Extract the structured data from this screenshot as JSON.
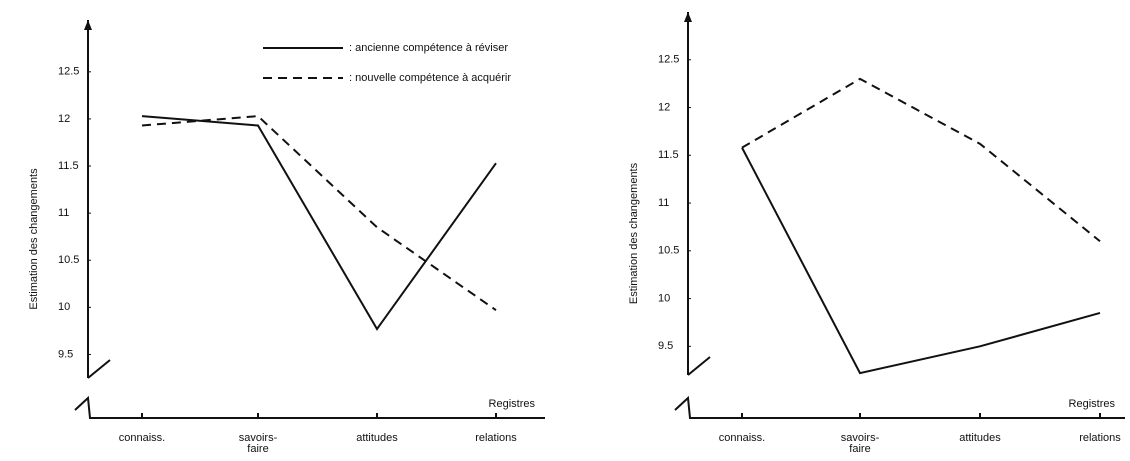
{
  "chart_data": [
    {
      "type": "line",
      "y_label": "Estimation des changements",
      "x_label": "Registres",
      "categories": [
        "connaiss.",
        "savoirs-\nfaire",
        "attitudes",
        "relations"
      ],
      "series": [
        {
          "name": ": ancienne compétence à réviser",
          "color": "#111111",
          "style": "solid",
          "values": [
            12.03,
            11.93,
            9.77,
            11.53
          ]
        },
        {
          "name": ": nouvelle compétence à acquérir",
          "color": "#111111",
          "style": "dashed",
          "values": [
            11.93,
            12.03,
            10.85,
            9.97
          ]
        }
      ],
      "ylim": [
        9.25,
        13.05
      ],
      "yticks": [
        9.5,
        10,
        10.5,
        11,
        11.5,
        12,
        12.5
      ],
      "legend": "top-right"
    },
    {
      "type": "line",
      "y_label": "Estimation des changements",
      "x_label": "Registres",
      "categories": [
        "connaiss.",
        "savoirs-\nfaire",
        "attitudes",
        "relations"
      ],
      "series": [
        {
          "color": "#111111",
          "style": "solid",
          "values": [
            11.58,
            9.22,
            9.5,
            9.85
          ]
        },
        {
          "color": "#111111",
          "style": "dashed",
          "values": [
            11.58,
            12.3,
            11.62,
            10.6
          ]
        }
      ],
      "ylim": [
        9.2,
        13.0
      ],
      "yticks": [
        9.5,
        10,
        10.5,
        11,
        11.5,
        12,
        12.5
      ]
    }
  ]
}
